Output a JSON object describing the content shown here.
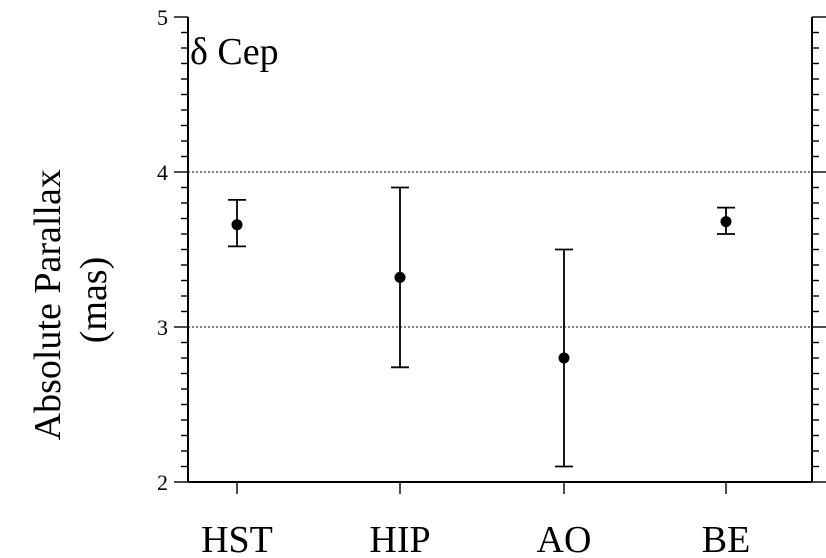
{
  "chart_data": {
    "type": "scatter",
    "title": "",
    "annotation": "δ Cep",
    "ylabel_lines": [
      "Absolute Parallax",
      "(mas)"
    ],
    "xlabel": "",
    "categories": [
      "HST",
      "HIP",
      "AO",
      "BE"
    ],
    "series": [
      {
        "values": [
          3.66,
          3.32,
          2.8,
          3.68
        ],
        "err_low": [
          3.52,
          2.74,
          2.1,
          3.6
        ],
        "err_high": [
          3.82,
          3.9,
          3.5,
          3.77
        ]
      }
    ],
    "ylim": [
      2,
      5
    ],
    "yticks": [
      2,
      3,
      4,
      5
    ],
    "y_minor_step": 0.1,
    "grid_y": [
      3,
      4
    ],
    "grid": "dashed at y=3 and y=4"
  }
}
